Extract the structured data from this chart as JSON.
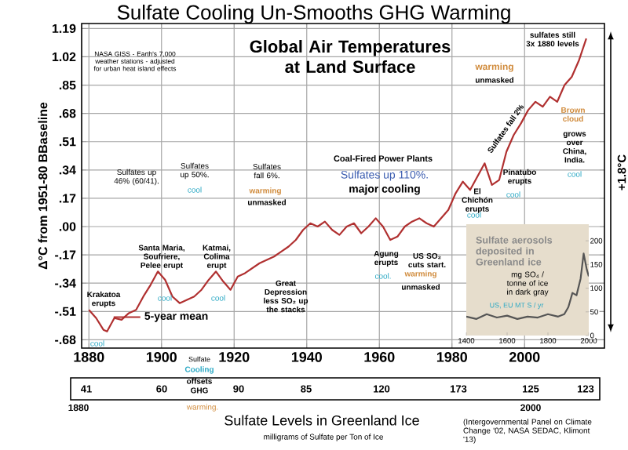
{
  "chart_data": [
    {
      "type": "line",
      "title": "Sulfate Cooling Un-Smooths GHG Warming",
      "subtitle": "Global Air Temperatures at Land Surface",
      "ylabel": "Δ°C from 1951-80 BBaseline",
      "x": [
        1880,
        1882,
        1884,
        1885,
        1887,
        1889,
        1891,
        1893,
        1895,
        1897,
        1899,
        1901,
        1903,
        1905,
        1907,
        1909,
        1911,
        1913,
        1915,
        1917,
        1919,
        1921,
        1923,
        1925,
        1927,
        1929,
        1931,
        1933,
        1935,
        1937,
        1939,
        1941,
        1943,
        1945,
        1947,
        1949,
        1951,
        1953,
        1955,
        1957,
        1959,
        1961,
        1963,
        1965,
        1967,
        1969,
        1971,
        1973,
        1975,
        1977,
        1979,
        1981,
        1983,
        1985,
        1987,
        1989,
        1991,
        1993,
        1995,
        1997,
        1999,
        2001,
        2003,
        2005,
        2007,
        2009,
        2011,
        2013,
        2015,
        2017
      ],
      "series": [
        {
          "name": "5-year mean",
          "color": "#b03030",
          "values": [
            -0.5,
            -0.55,
            -0.62,
            -0.63,
            -0.55,
            -0.56,
            -0.52,
            -0.5,
            -0.42,
            -0.35,
            -0.27,
            -0.32,
            -0.42,
            -0.46,
            -0.44,
            -0.42,
            -0.38,
            -0.32,
            -0.27,
            -0.33,
            -0.38,
            -0.3,
            -0.28,
            -0.25,
            -0.22,
            -0.2,
            -0.18,
            -0.15,
            -0.12,
            -0.08,
            -0.02,
            0.02,
            0.0,
            0.03,
            -0.02,
            -0.05,
            0.0,
            0.02,
            -0.04,
            0.0,
            0.05,
            0.0,
            -0.08,
            -0.06,
            0.0,
            0.03,
            0.05,
            0.02,
            0.0,
            0.05,
            0.1,
            0.2,
            0.27,
            0.22,
            0.3,
            0.38,
            0.25,
            0.28,
            0.45,
            0.55,
            0.62,
            0.7,
            0.75,
            0.72,
            0.78,
            0.75,
            0.85,
            0.9,
            1.0,
            1.13
          ]
        }
      ],
      "xlim": [
        1878,
        2022
      ],
      "xticks": [
        1880,
        1900,
        1920,
        1940,
        1960,
        1980,
        2000
      ],
      "ylim": [
        -0.73,
        1.22
      ],
      "yticks": [
        1.19,
        1.02,
        {
          "value": 0.85,
          "label": ".85"
        },
        {
          "value": 0.68,
          "label": ".68"
        },
        {
          "value": 0.51,
          "label": ".51"
        },
        {
          "value": 0.34,
          "label": ".34"
        },
        {
          "value": 0.17,
          "label": ".17"
        },
        {
          "value": 0,
          "label": ".00"
        },
        {
          "value": -0.17,
          "label": "-.17"
        },
        {
          "value": -0.34,
          "label": "-.34"
        },
        {
          "value": -0.51,
          "label": "-.51"
        },
        {
          "value": -0.68,
          "label": "-.68"
        }
      ],
      "grid": true,
      "legend": "bottom left",
      "annotations": [
        "NASA GISS - Earth's 7,000 weather stations - adjusted for urban heat island effects",
        "Sulfates up 46% (60/41).",
        "Sulfates up 50%.",
        "cool",
        "Sulfates fall 6%.",
        "warming",
        "unmasked",
        "Coal-Fired Power Plants",
        "Sulfates up 110%.",
        "major cooling",
        "warming",
        "unmasked",
        "sulfates still 3x 1880 levels",
        "Sulfates fall 2%",
        "Brown cloud",
        "grows over China, India.",
        "cool",
        "Pinatubo erupts",
        "cool",
        "El Chichón erupts",
        "cool",
        "Krakatoa erupts",
        "cool",
        "Santa Maria, Soufriere, Pelee erupt",
        "cool",
        "Katmai, Colima erupt",
        "cool",
        "Great Depression less SO₂ up the stacks",
        "Agung erupts",
        "cool.",
        "US SO₂ cuts start.",
        "warming",
        "unmasked",
        "+1.8°C",
        "Sulfate",
        "Cooling",
        "offsets",
        "GHG",
        "warming.",
        "41",
        "60",
        "90",
        "85",
        "120",
        "173",
        "125",
        "123",
        "1880",
        "2000",
        "Sulfate Levels in Greenland Ice",
        "milligrams of Sulfate per Ton of Ice",
        "(Intergovernmental Panel on Climate Change '02, NASA SEDAC, Klimont '13)"
      ]
    },
    {
      "type": "line",
      "title": "Sulfate aerosols deposited in Greenland ice",
      "x": [
        1400,
        1450,
        1500,
        1550,
        1600,
        1650,
        1700,
        1750,
        1800,
        1850,
        1880,
        1900,
        1920,
        1940,
        1960,
        1975,
        1990,
        2000
      ],
      "series": [
        {
          "color": "#555555",
          "values": [
            40,
            35,
            45,
            38,
            42,
            35,
            40,
            38,
            45,
            40,
            45,
            60,
            90,
            85,
            120,
            173,
            140,
            125
          ]
        }
      ],
      "xlim": [
        1400,
        2000
      ],
      "xticks": [
        1400,
        1600,
        1800,
        2000
      ],
      "ylim": [
        0,
        235
      ],
      "yticks": [
        0,
        50,
        100,
        150,
        200
      ],
      "annotations": [
        "mg SO₄ / tonne of ice in dark gray",
        "US, EU MT S / yr"
      ]
    }
  ]
}
